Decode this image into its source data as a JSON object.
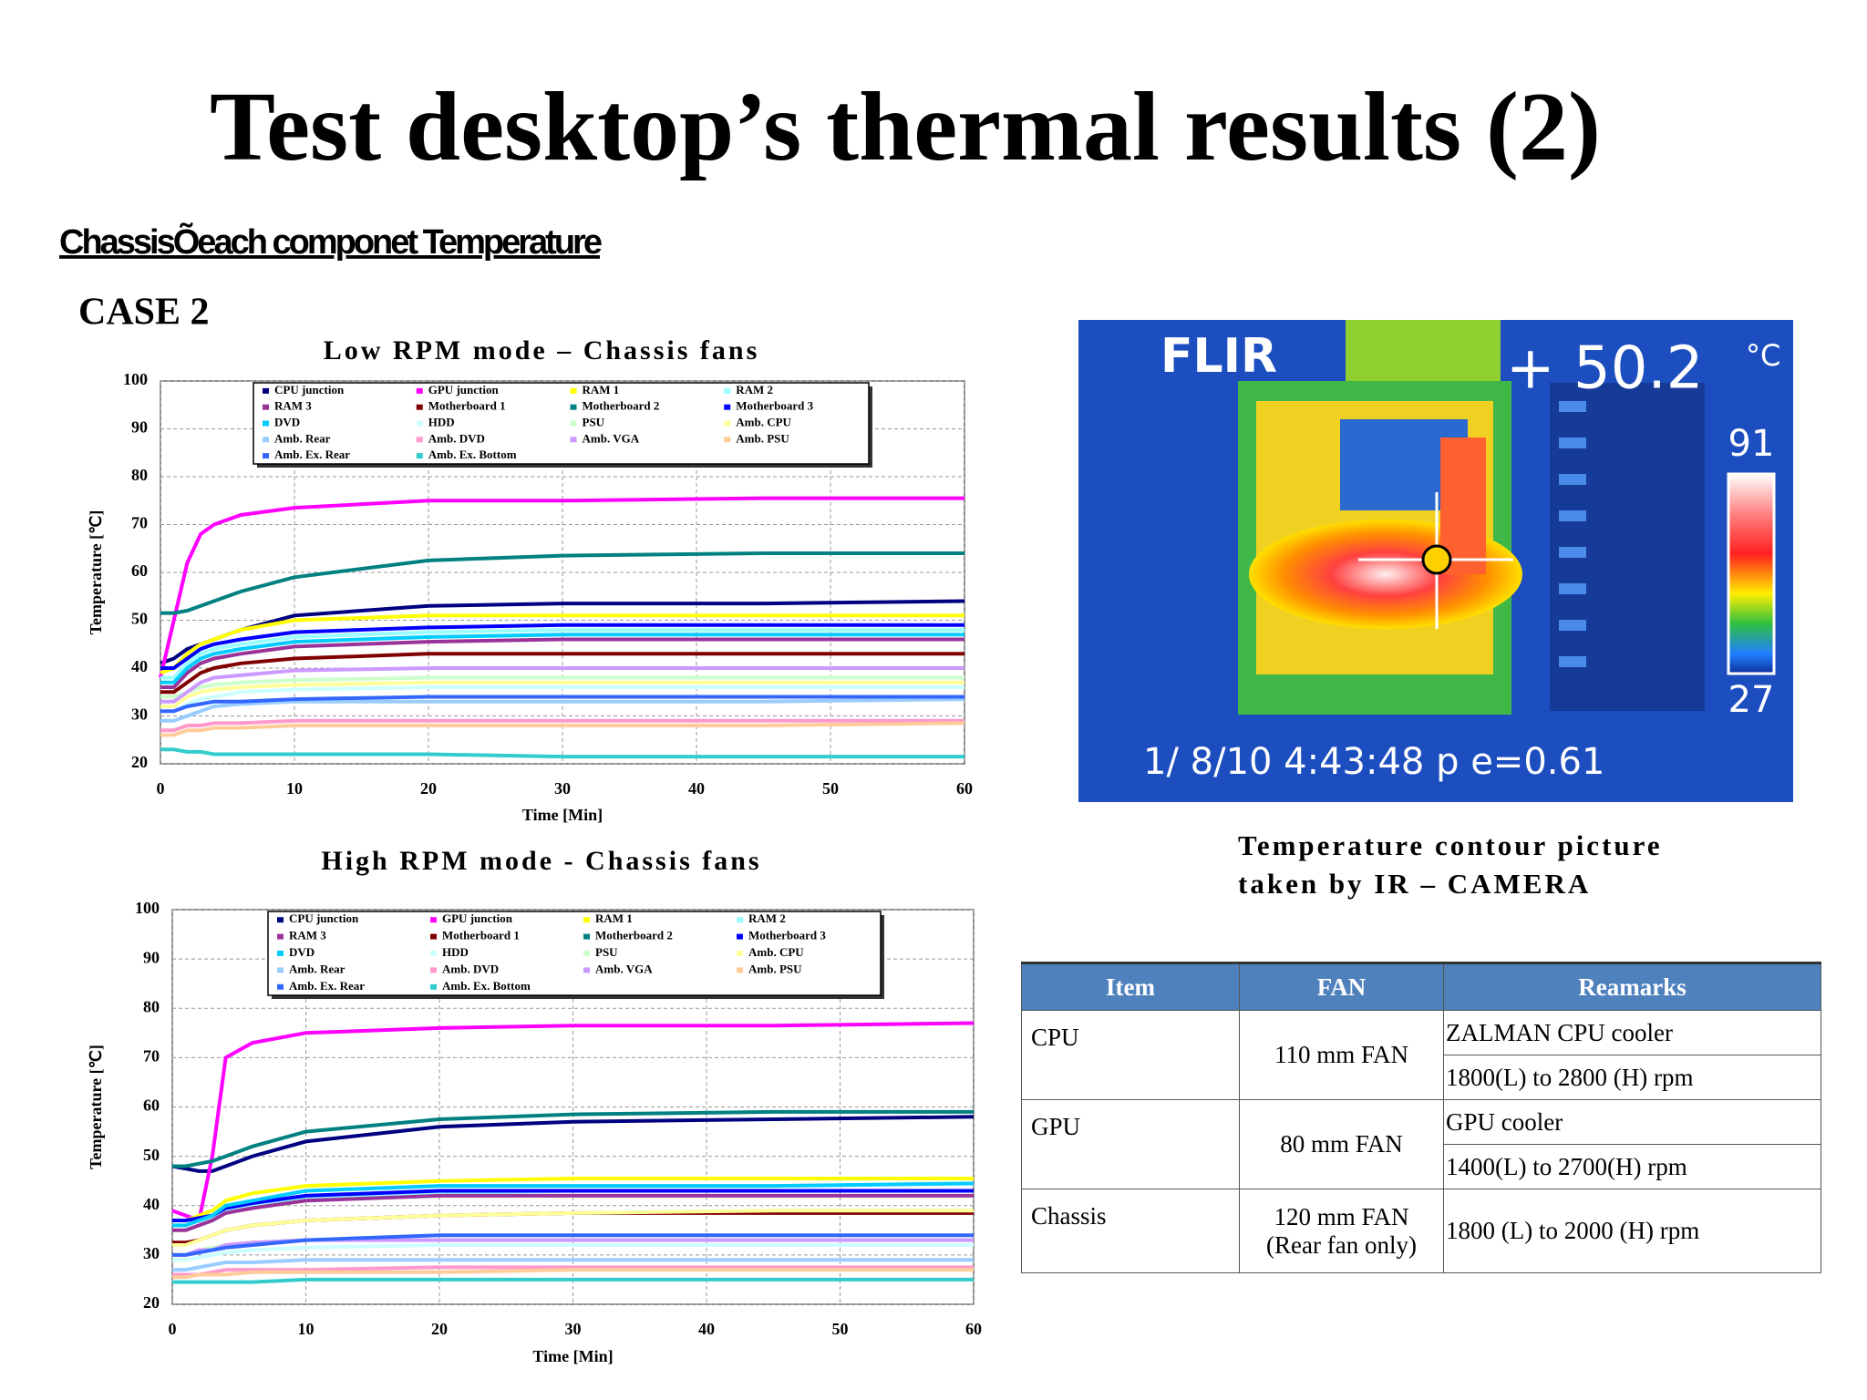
{
  "title": "Test desktop’s thermal results (2)",
  "subtitle": "ChassisÕeach componet Temperature",
  "case_label": "CASE 2",
  "chart_data": [
    {
      "type": "line",
      "title": "Low RPM mode – Chassis fans",
      "xlabel": "Time [Min]",
      "ylabel": "Temperature [℃]",
      "x": [
        0,
        1,
        2,
        3,
        4,
        6,
        10,
        20,
        30,
        45,
        60
      ],
      "xlim": [
        0,
        60
      ],
      "xticks": [
        0,
        10,
        20,
        30,
        40,
        50,
        60
      ],
      "ylim": [
        20,
        100
      ],
      "yticks": [
        20,
        30,
        40,
        50,
        60,
        70,
        80,
        90,
        100
      ],
      "grid": true,
      "series": [
        {
          "name": "CPU junction",
          "color": "#000080",
          "values": [
            41,
            42,
            44,
            45,
            46,
            48,
            51,
            53,
            53.5,
            53.5,
            54
          ]
        },
        {
          "name": "GPU junction",
          "color": "#ff00ff",
          "values": [
            38,
            50,
            62,
            68,
            70,
            72,
            73.5,
            75,
            75,
            75.5,
            75.5
          ]
        },
        {
          "name": "RAM 1",
          "color": "#ffff00",
          "values": [
            39,
            40,
            43,
            45,
            46,
            48,
            50,
            51,
            51,
            51,
            51
          ]
        },
        {
          "name": "RAM 2",
          "color": "#99ffff",
          "values": [
            38,
            38,
            41,
            43,
            44,
            45,
            46.5,
            47.5,
            48,
            48,
            48
          ]
        },
        {
          "name": "RAM 3",
          "color": "#993399",
          "values": [
            36,
            36,
            39,
            41,
            42,
            43,
            44.5,
            45.5,
            46,
            46,
            46
          ]
        },
        {
          "name": "Motherboard 1",
          "color": "#800000",
          "values": [
            35,
            35,
            37,
            39,
            40,
            41,
            42,
            43,
            43,
            43,
            43
          ]
        },
        {
          "name": "Motherboard 2",
          "color": "#008080",
          "values": [
            51.5,
            51.5,
            52,
            53,
            54,
            56,
            59,
            62.5,
            63.5,
            64,
            64
          ]
        },
        {
          "name": "Motherboard 3",
          "color": "#0000ff",
          "values": [
            40,
            40,
            42,
            44,
            45,
            46,
            47.5,
            48.5,
            49,
            49,
            49
          ]
        },
        {
          "name": "DVD",
          "color": "#00ccff",
          "values": [
            37,
            37,
            40,
            42,
            43,
            44,
            45.5,
            46.5,
            47,
            47,
            47
          ]
        },
        {
          "name": "HDD",
          "color": "#ccffff",
          "values": [
            31,
            31,
            32.5,
            33.5,
            34,
            35,
            35.5,
            36,
            36,
            36,
            36
          ]
        },
        {
          "name": "PSU",
          "color": "#ccffcc",
          "values": [
            34,
            34,
            35,
            36,
            36.5,
            37,
            37.5,
            38,
            38,
            38,
            38
          ]
        },
        {
          "name": "Amb. CPU",
          "color": "#ffff99",
          "values": [
            32,
            32,
            34,
            35,
            35.5,
            36,
            36.5,
            37,
            37,
            37,
            37
          ]
        },
        {
          "name": "Amb. Rear",
          "color": "#99ccff",
          "values": [
            29,
            29,
            30,
            31,
            32,
            32.5,
            33,
            33,
            33,
            33,
            33.5
          ]
        },
        {
          "name": "Amb. DVD",
          "color": "#ff99cc",
          "values": [
            27,
            27,
            28,
            28,
            28.5,
            28.5,
            29,
            29,
            29,
            29,
            29
          ]
        },
        {
          "name": "Amb. VGA",
          "color": "#cc99ff",
          "values": [
            33,
            33,
            35,
            37,
            38,
            38.5,
            39.5,
            40,
            40,
            40,
            40
          ]
        },
        {
          "name": "Amb. PSU",
          "color": "#ffcc99",
          "values": [
            26,
            26,
            27,
            27,
            27.5,
            27.5,
            28,
            28,
            28,
            28,
            28.5
          ]
        },
        {
          "name": "Amb. Ex. Rear",
          "color": "#3366ff",
          "values": [
            31,
            31,
            32,
            32.5,
            33,
            33,
            33.5,
            34,
            34,
            34,
            34
          ]
        },
        {
          "name": "Amb. Ex. Bottom",
          "color": "#33cccc",
          "values": [
            23,
            23,
            22.5,
            22.5,
            22,
            22,
            22,
            22,
            21.5,
            21.5,
            21.5
          ]
        }
      ]
    },
    {
      "type": "line",
      "title": "High RPM mode - Chassis fans",
      "xlabel": "Time [Min]",
      "ylabel": "Temperature [℃]",
      "x": [
        0,
        1,
        2,
        3,
        4,
        6,
        10,
        20,
        30,
        45,
        60
      ],
      "xlim": [
        0,
        60
      ],
      "xticks": [
        0,
        10,
        20,
        30,
        40,
        50,
        60
      ],
      "ylim": [
        20,
        100
      ],
      "yticks": [
        20,
        30,
        40,
        50,
        60,
        70,
        80,
        90,
        100
      ],
      "grid": true,
      "series": [
        {
          "name": "CPU junction",
          "color": "#000080",
          "values": [
            48,
            47.5,
            47,
            47,
            48,
            50,
            53,
            56,
            57,
            57.5,
            58
          ]
        },
        {
          "name": "GPU junction",
          "color": "#ff00ff",
          "values": [
            39,
            38,
            37,
            50,
            70,
            73,
            75,
            76,
            76.5,
            76.5,
            77
          ]
        },
        {
          "name": "RAM 1",
          "color": "#ffff00",
          "values": [
            37,
            37,
            38,
            39,
            41,
            42.5,
            44,
            45,
            45.5,
            45.5,
            45.5
          ]
        },
        {
          "name": "RAM 2",
          "color": "#99ffff",
          "values": [
            36,
            36,
            37,
            37.5,
            39,
            40,
            41.5,
            42.5,
            43,
            43,
            43
          ]
        },
        {
          "name": "RAM 3",
          "color": "#993399",
          "values": [
            35,
            35,
            36,
            37,
            38.5,
            39.5,
            41,
            42,
            42,
            42,
            42
          ]
        },
        {
          "name": "Motherboard 1",
          "color": "#800000",
          "values": [
            32.5,
            32.5,
            33,
            34,
            35,
            36,
            37,
            38,
            38.5,
            38.5,
            38.5
          ]
        },
        {
          "name": "Motherboard 2",
          "color": "#008080",
          "values": [
            48,
            48,
            48.5,
            49,
            50,
            52,
            55,
            57.5,
            58.5,
            59,
            59
          ]
        },
        {
          "name": "Motherboard 3",
          "color": "#0000ff",
          "values": [
            37,
            37,
            37.5,
            38,
            39.5,
            40.5,
            42,
            43,
            43,
            43,
            43
          ]
        },
        {
          "name": "DVD",
          "color": "#00ccff",
          "values": [
            36,
            36,
            37,
            38,
            40,
            41,
            43,
            44,
            44,
            44,
            44.5
          ]
        },
        {
          "name": "HDD",
          "color": "#ccffff",
          "values": [
            29,
            29,
            29.5,
            30,
            30.5,
            31,
            31.5,
            32,
            32,
            32,
            32
          ]
        },
        {
          "name": "PSU",
          "color": "#ccffcc",
          "values": [
            30,
            30,
            31,
            31.5,
            32,
            32.5,
            33,
            34,
            34,
            34,
            34
          ]
        },
        {
          "name": "Amb. CPU",
          "color": "#ffff99",
          "values": [
            32,
            32,
            33,
            34,
            35,
            36,
            37,
            38,
            38.5,
            39,
            39
          ]
        },
        {
          "name": "Amb. Rear",
          "color": "#99ccff",
          "values": [
            27,
            27,
            27.5,
            28,
            28.5,
            28.5,
            29,
            29,
            29,
            29,
            29
          ]
        },
        {
          "name": "Amb. DVD",
          "color": "#ff99cc",
          "values": [
            26,
            26,
            26,
            26.5,
            27,
            27,
            27,
            27.5,
            27.5,
            27.5,
            27.5
          ]
        },
        {
          "name": "Amb. VGA",
          "color": "#cc99ff",
          "values": [
            30,
            30,
            31,
            31,
            32,
            32.5,
            33,
            33,
            33,
            33,
            33
          ]
        },
        {
          "name": "Amb. PSU",
          "color": "#ffcc99",
          "values": [
            25.5,
            25.5,
            26,
            26,
            26,
            26.5,
            26.5,
            26.5,
            27,
            27,
            27
          ]
        },
        {
          "name": "Amb. Ex. Rear",
          "color": "#3366ff",
          "values": [
            30,
            30,
            30.5,
            31,
            31.5,
            32,
            33,
            34,
            34,
            34,
            34
          ]
        },
        {
          "name": "Amb. Ex. Bottom",
          "color": "#33cccc",
          "values": [
            24.5,
            24.5,
            24.5,
            24.5,
            24.5,
            24.5,
            25,
            25,
            25,
            25,
            25
          ]
        }
      ]
    }
  ],
  "ir_image": {
    "brand": "FLIR",
    "reading": "+ 50.2",
    "unit": "°C",
    "scale_max": "91",
    "scale_min": "27",
    "timestamp": "1/ 8/10 4:43:48 p e=0.61"
  },
  "caption": [
    "Temperature contour picture",
    "taken by IR – CAMERA"
  ],
  "table": {
    "header": [
      "Item",
      "FAN",
      "Reamarks"
    ],
    "rows": [
      {
        "item": "CPU",
        "fan": [
          "110 mm FAN"
        ],
        "remarks": [
          "ZALMAN CPU cooler",
          "1800(L) to 2800 (H) rpm"
        ]
      },
      {
        "item": "GPU",
        "fan": [
          "80 mm FAN"
        ],
        "remarks": [
          "GPU cooler",
          "1400(L) to 2700(H) rpm"
        ]
      },
      {
        "item": "Chassis",
        "fan": [
          "120 mm FAN",
          "(Rear fan only)"
        ],
        "remarks": [
          "1800 (L) to 2000 (H) rpm"
        ]
      }
    ]
  }
}
